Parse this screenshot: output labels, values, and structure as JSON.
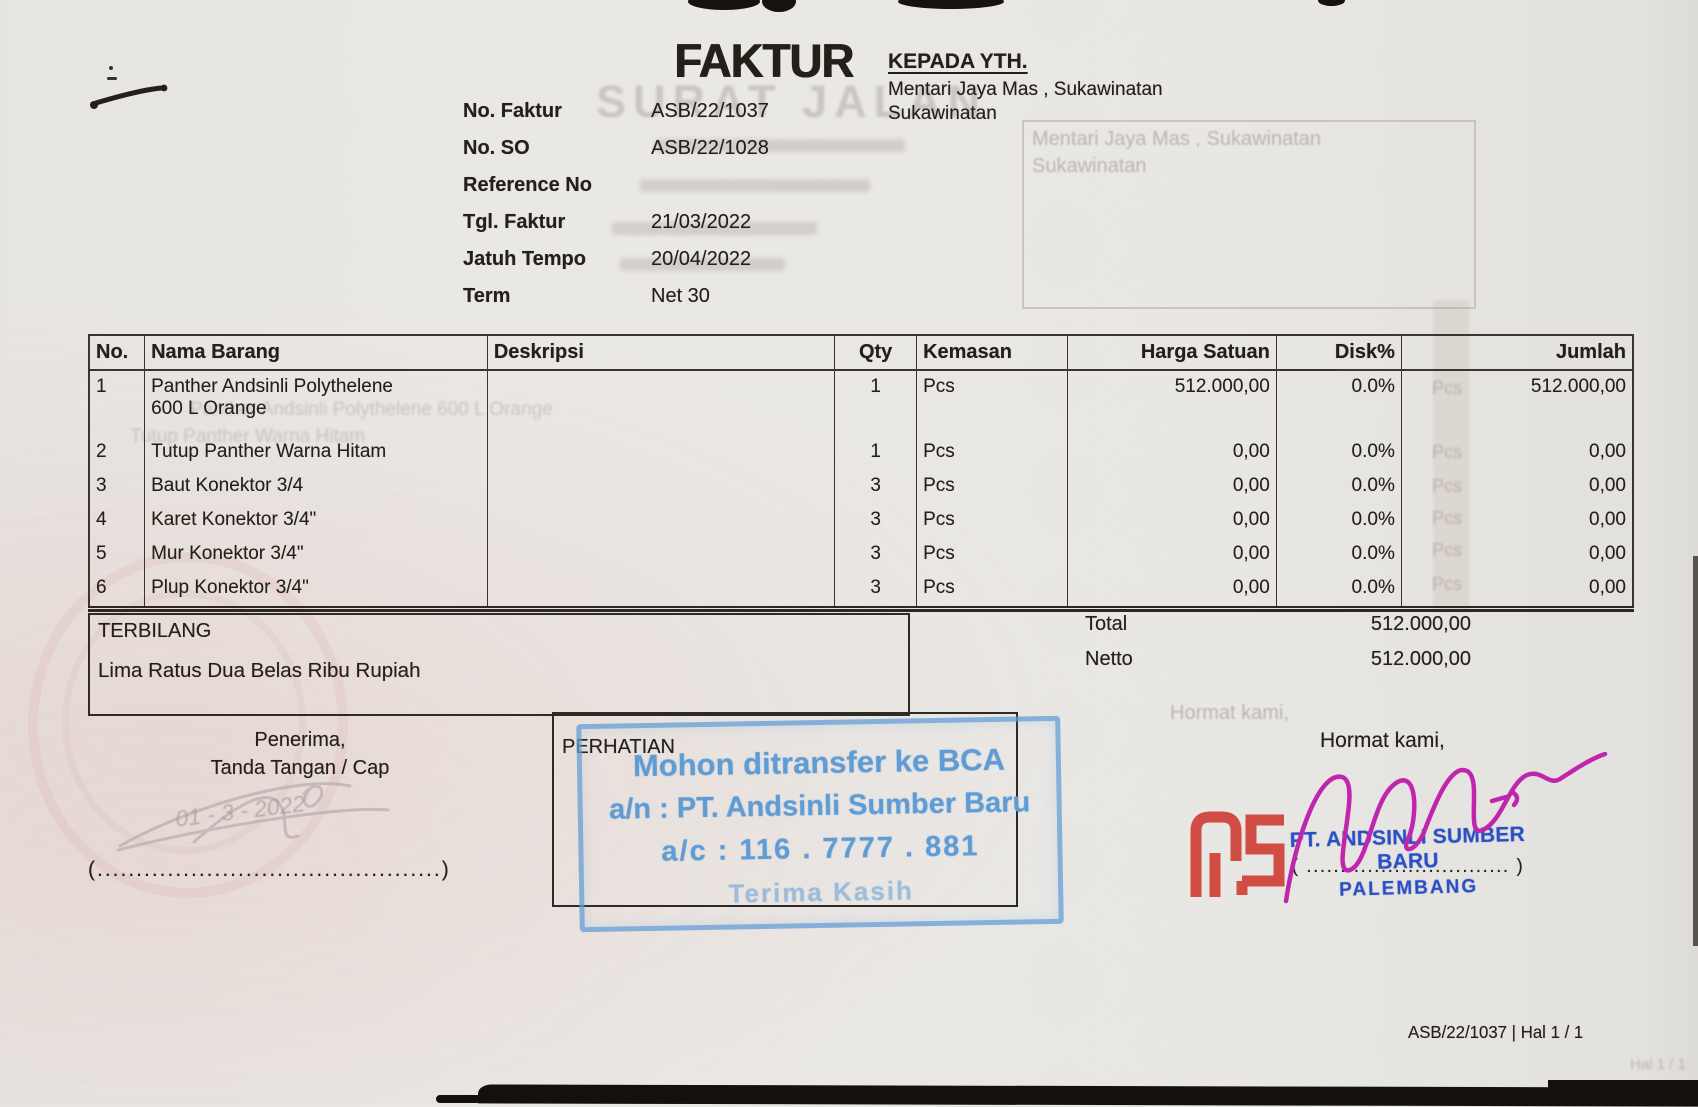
{
  "header": {
    "title": "FAKTUR",
    "kepada_label": "KEPADA YTH.",
    "recipient_line1": "Mentari Jaya Mas , Sukawinatan",
    "recipient_line2": "Sukawinatan",
    "meta": [
      {
        "label": "No. Faktur",
        "value": "ASB/22/1037"
      },
      {
        "label": "No. SO",
        "value": "ASB/22/1028"
      },
      {
        "label": "Reference No",
        "value": ""
      },
      {
        "label": "Tgl. Faktur",
        "value": "21/03/2022"
      },
      {
        "label": "Jatuh Tempo",
        "value": "20/04/2022"
      },
      {
        "label": "Term",
        "value": "Net 30"
      }
    ]
  },
  "table": {
    "headers": [
      "No.",
      "Nama Barang",
      "Deskripsi",
      "Qty",
      "Kemasan",
      "Harga Satuan",
      "Disk%",
      "Jumlah"
    ],
    "rows": [
      {
        "no": "1",
        "nama": "Panther Andsinli Polythelene",
        "nama2": "600 L Orange",
        "deskripsi": "",
        "qty": "1",
        "kemasan": "Pcs",
        "harga": "512.000,00",
        "disk": "0.0%",
        "jumlah": "512.000,00"
      },
      {
        "no": "2",
        "nama": "Tutup Panther Warna Hitam",
        "nama2": "",
        "deskripsi": "",
        "qty": "1",
        "kemasan": "Pcs",
        "harga": "0,00",
        "disk": "0.0%",
        "jumlah": "0,00"
      },
      {
        "no": "3",
        "nama": "Baut Konektor 3/4",
        "nama2": "",
        "deskripsi": "",
        "qty": "3",
        "kemasan": "Pcs",
        "harga": "0,00",
        "disk": "0.0%",
        "jumlah": "0,00"
      },
      {
        "no": "4",
        "nama": "Karet Konektor 3/4\"",
        "nama2": "",
        "deskripsi": "",
        "qty": "3",
        "kemasan": "Pcs",
        "harga": "0,00",
        "disk": "0.0%",
        "jumlah": "0,00"
      },
      {
        "no": "5",
        "nama": "Mur Konektor 3/4\"",
        "nama2": "",
        "deskripsi": "",
        "qty": "3",
        "kemasan": "Pcs",
        "harga": "0,00",
        "disk": "0.0%",
        "jumlah": "0,00"
      },
      {
        "no": "6",
        "nama": "Plup Konektor 3/4\"",
        "nama2": "",
        "deskripsi": "",
        "qty": "3",
        "kemasan": "Pcs",
        "harga": "0,00",
        "disk": "0.0%",
        "jumlah": "0,00"
      }
    ]
  },
  "terbilang": {
    "label": "TERBILANG",
    "text": "Lima Ratus Dua Belas Ribu Rupiah"
  },
  "totals": [
    {
      "label": "Total",
      "value": "512.000,00"
    },
    {
      "label": "Netto",
      "value": "512.000,00"
    }
  ],
  "sign_left": {
    "line1": "Penerima,",
    "line2": "Tanda Tangan / Cap",
    "dotline": "(............................................)",
    "handwritten_date": "01 - 3 - 2022"
  },
  "perhatian": {
    "label": "PERHATIAN",
    "stamp": [
      "Mohon ditransfer ke BCA",
      "a/n : PT. Andsinli Sumber Baru",
      "a/c : 116 . 7777 . 881",
      "Terima Kasih"
    ]
  },
  "sign_right": {
    "line1": "Hormat kami,",
    "stamp_company": "PT. ANDSINLI SUMBER BARU",
    "stamp_city": "PALEMBANG",
    "dotline": "( .............................. )"
  },
  "footer": {
    "text": "ASB/22/1037 | Hal 1 / 1"
  },
  "ghost": {
    "title": "SURAT JALAN",
    "recipient_line1": "Mentari Jaya Mas , Sukawinatan",
    "recipient_line2": "Sukawinatan",
    "hormat": "Hormat kami,",
    "pcs": "Pcs",
    "item1": "Panther Andsinli Polythelene 600 L Orange",
    "item2": "Tutup Panther Warna Hitam",
    "footer": "Hal 1 / 1"
  },
  "colors": {
    "stamp_blue": "#5f9cd4",
    "stamp_dark_blue": "#2a4fc4",
    "stamp_red": "#ce362b",
    "signature_magenta": "#c026ad",
    "pencil_gray": "#b5adb0"
  }
}
